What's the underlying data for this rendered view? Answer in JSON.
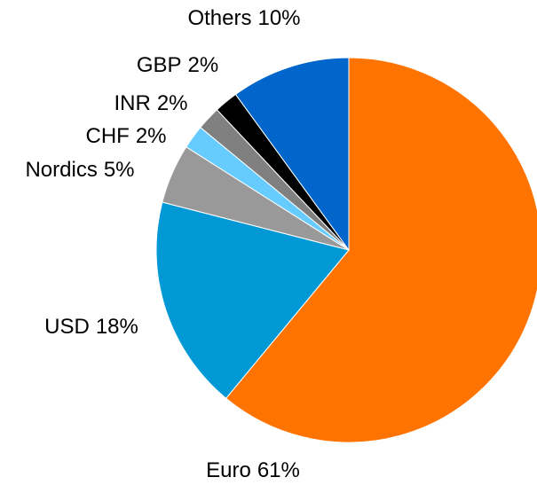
{
  "chart_data": {
    "type": "pie",
    "categories": [
      "Euro",
      "USD",
      "Nordics",
      "CHF",
      "INR",
      "GBP",
      "Others"
    ],
    "values": [
      61,
      18,
      5,
      2,
      2,
      2,
      10
    ],
    "value_labels": [
      "61%",
      "18%",
      "5%",
      "2%",
      "2%",
      "2%",
      "10%"
    ],
    "colors": [
      "#ff7300",
      "#0099d6",
      "#999999",
      "#66ccff",
      "#808080",
      "#000000",
      "#0066cc"
    ]
  }
}
